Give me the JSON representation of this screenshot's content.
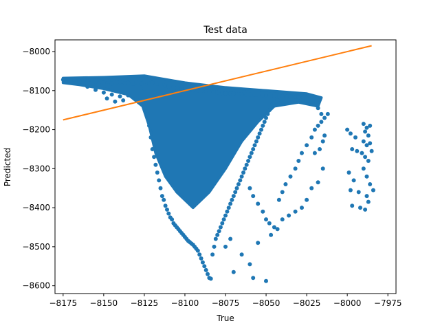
{
  "chart_data": {
    "type": "scatter",
    "title": "Test data",
    "xlabel": "True",
    "ylabel": "Predicted",
    "xlim": [
      -8180,
      -7970
    ],
    "ylim": [
      -8620,
      -7970
    ],
    "xticks": [
      -8175,
      -8150,
      -8125,
      -8100,
      -8075,
      -8050,
      -8025,
      -8000,
      -7975
    ],
    "yticks": [
      -8000,
      -8100,
      -8200,
      -8300,
      -8400,
      -8500,
      -8600
    ],
    "xtick_labels": [
      "−8175",
      "−8150",
      "−8125",
      "−8100",
      "−8075",
      "−8050",
      "−8025",
      "−8000",
      "−7975"
    ],
    "ytick_labels": [
      "−8000",
      "−8100",
      "−8200",
      "−8300",
      "−8400",
      "−8500",
      "−8600"
    ],
    "grid": false,
    "colors": {
      "scatter": "#1f77b4",
      "line": "#ff7f0e"
    },
    "series": [
      {
        "kind": "scatter",
        "points": [
          [
            -8175,
            -8072
          ],
          [
            -8172,
            -8070
          ],
          [
            -8170,
            -8075
          ],
          [
            -8168,
            -8072
          ],
          [
            -8165,
            -8075
          ],
          [
            -8162,
            -8073
          ],
          [
            -8160,
            -8076
          ],
          [
            -8157,
            -8074
          ],
          [
            -8155,
            -8078
          ],
          [
            -8152,
            -8076
          ],
          [
            -8150,
            -8080
          ],
          [
            -8147,
            -8077
          ],
          [
            -8145,
            -8082
          ],
          [
            -8142,
            -8079
          ],
          [
            -8140,
            -8078
          ],
          [
            -8137,
            -8081
          ],
          [
            -8135,
            -8080
          ],
          [
            -8132,
            -8083
          ],
          [
            -8130,
            -8079
          ],
          [
            -8127,
            -8082
          ],
          [
            -8125,
            -8078
          ],
          [
            -8122,
            -8081
          ],
          [
            -8120,
            -8080
          ],
          [
            -8117,
            -8083
          ],
          [
            -8115,
            -8085
          ],
          [
            -8112,
            -8087
          ],
          [
            -8110,
            -8090
          ],
          [
            -8107,
            -8091
          ],
          [
            -8105,
            -8093
          ],
          [
            -8102,
            -8095
          ],
          [
            -8100,
            -8096
          ],
          [
            -8097,
            -8098
          ],
          [
            -8095,
            -8099
          ],
          [
            -8092,
            -8100
          ],
          [
            -8090,
            -8101
          ],
          [
            -8087,
            -8102
          ],
          [
            -8085,
            -8103
          ],
          [
            -8082,
            -8104
          ],
          [
            -8080,
            -8105
          ],
          [
            -8077,
            -8106
          ],
          [
            -8075,
            -8107
          ],
          [
            -8072,
            -8108
          ],
          [
            -8070,
            -8108
          ],
          [
            -8067,
            -8109
          ],
          [
            -8065,
            -8109
          ],
          [
            -8062,
            -8110
          ],
          [
            -8060,
            -8110
          ],
          [
            -8057,
            -8111
          ],
          [
            -8055,
            -8111
          ],
          [
            -8052,
            -8112
          ],
          [
            -8050,
            -8112
          ],
          [
            -8047,
            -8113
          ],
          [
            -8045,
            -8113
          ],
          [
            -8042,
            -8114
          ],
          [
            -8040,
            -8114
          ],
          [
            -8037,
            -8115
          ],
          [
            -8035,
            -8115
          ],
          [
            -8032,
            -8116
          ],
          [
            -8030,
            -8117
          ],
          [
            -8027,
            -8118
          ],
          [
            -8025,
            -8120
          ],
          [
            -8022,
            -8128
          ],
          [
            -8020,
            -8136
          ],
          [
            -8018,
            -8145
          ],
          [
            -8016,
            -8160
          ],
          [
            -8160,
            -8090
          ],
          [
            -8155,
            -8098
          ],
          [
            -8150,
            -8105
          ],
          [
            -8145,
            -8110
          ],
          [
            -8140,
            -8115
          ],
          [
            -8135,
            -8112
          ],
          [
            -8130,
            -8120
          ],
          [
            -8148,
            -8120
          ],
          [
            -8143,
            -8128
          ],
          [
            -8138,
            -8125
          ],
          [
            -8125,
            -8095
          ],
          [
            -8124,
            -8130
          ],
          [
            -8123,
            -8160
          ],
          [
            -8122,
            -8190
          ],
          [
            -8121,
            -8220
          ],
          [
            -8120,
            -8250
          ],
          [
            -8119,
            -8270
          ],
          [
            -8118,
            -8290
          ],
          [
            -8117,
            -8310
          ],
          [
            -8116,
            -8330
          ],
          [
            -8115,
            -8350
          ],
          [
            -8114,
            -8370
          ],
          [
            -8113,
            -8380
          ],
          [
            -8112,
            -8395
          ],
          [
            -8111,
            -8405
          ],
          [
            -8110,
            -8415
          ],
          [
            -8109,
            -8425
          ],
          [
            -8108,
            -8430
          ],
          [
            -8107,
            -8440
          ],
          [
            -8106,
            -8445
          ],
          [
            -8105,
            -8450
          ],
          [
            -8104,
            -8455
          ],
          [
            -8103,
            -8460
          ],
          [
            -8102,
            -8465
          ],
          [
            -8101,
            -8470
          ],
          [
            -8100,
            -8475
          ],
          [
            -8099,
            -8480
          ],
          [
            -8098,
            -8485
          ],
          [
            -8097,
            -8488
          ],
          [
            -8096,
            -8492
          ],
          [
            -8095,
            -8495
          ],
          [
            -8094,
            -8500
          ],
          [
            -8093,
            -8505
          ],
          [
            -8092,
            -8510
          ],
          [
            -8091,
            -8520
          ],
          [
            -8090,
            -8530
          ],
          [
            -8089,
            -8540
          ],
          [
            -8088,
            -8550
          ],
          [
            -8087,
            -8560
          ],
          [
            -8086,
            -8570
          ],
          [
            -8085,
            -8580
          ],
          [
            -8084,
            -8582
          ],
          [
            -8083,
            -8520
          ],
          [
            -8082,
            -8500
          ],
          [
            -8081,
            -8480
          ],
          [
            -8080,
            -8470
          ],
          [
            -8079,
            -8460
          ],
          [
            -8078,
            -8450
          ],
          [
            -8077,
            -8440
          ],
          [
            -8076,
            -8430
          ],
          [
            -8075,
            -8420
          ],
          [
            -8074,
            -8410
          ],
          [
            -8073,
            -8400
          ],
          [
            -8072,
            -8390
          ],
          [
            -8071,
            -8380
          ],
          [
            -8070,
            -8370
          ],
          [
            -8069,
            -8360
          ],
          [
            -8068,
            -8350
          ],
          [
            -8067,
            -8340
          ],
          [
            -8066,
            -8330
          ],
          [
            -8065,
            -8320
          ],
          [
            -8064,
            -8310
          ],
          [
            -8063,
            -8300
          ],
          [
            -8062,
            -8290
          ],
          [
            -8061,
            -8280
          ],
          [
            -8060,
            -8270
          ],
          [
            -8059,
            -8260
          ],
          [
            -8058,
            -8250
          ],
          [
            -8057,
            -8240
          ],
          [
            -8056,
            -8230
          ],
          [
            -8055,
            -8220
          ],
          [
            -8054,
            -8210
          ],
          [
            -8053,
            -8200
          ],
          [
            -8052,
            -8190
          ],
          [
            -8051,
            -8180
          ],
          [
            -8050,
            -8170
          ],
          [
            -8049,
            -8160
          ],
          [
            -8048,
            -8150
          ],
          [
            -8047,
            -8140
          ],
          [
            -8046,
            -8135
          ],
          [
            -8045,
            -8130
          ],
          [
            -8044,
            -8128
          ],
          [
            -8043,
            -8125
          ],
          [
            -8060,
            -8350
          ],
          [
            -8058,
            -8370
          ],
          [
            -8055,
            -8390
          ],
          [
            -8052,
            -8410
          ],
          [
            -8050,
            -8430
          ],
          [
            -8048,
            -8440
          ],
          [
            -8045,
            -8450
          ],
          [
            -8042,
            -8380
          ],
          [
            -8040,
            -8360
          ],
          [
            -8038,
            -8340
          ],
          [
            -8035,
            -8320
          ],
          [
            -8032,
            -8300
          ],
          [
            -8030,
            -8280
          ],
          [
            -8028,
            -8260
          ],
          [
            -8025,
            -8240
          ],
          [
            -8022,
            -8220
          ],
          [
            -8020,
            -8200
          ],
          [
            -8018,
            -8190
          ],
          [
            -8016,
            -8180
          ],
          [
            -8014,
            -8170
          ],
          [
            -8012,
            -8160
          ],
          [
            -8075,
            -8500
          ],
          [
            -8072,
            -8480
          ],
          [
            -8070,
            -8565
          ],
          [
            -8065,
            -8520
          ],
          [
            -8060,
            -8545
          ],
          [
            -8058,
            -8580
          ],
          [
            -8055,
            -8490
          ],
          [
            -8050,
            -8588
          ],
          [
            -8047,
            -8470
          ],
          [
            -8043,
            -8455
          ],
          [
            -8040,
            -8430
          ],
          [
            -8036,
            -8420
          ],
          [
            -8032,
            -8410
          ],
          [
            -8028,
            -8400
          ],
          [
            -8025,
            -8380
          ],
          [
            -8022,
            -8350
          ],
          [
            -8018,
            -8335
          ],
          [
            -8015,
            -8300
          ],
          [
            -8020,
            -8260
          ],
          [
            -8017,
            -8250
          ],
          [
            -8015,
            -8230
          ],
          [
            -8014,
            -8215
          ],
          [
            -8000,
            -8200
          ],
          [
            -7998,
            -8210
          ],
          [
            -7995,
            -8220
          ],
          [
            -7997,
            -8250
          ],
          [
            -7994,
            -8255
          ],
          [
            -7999,
            -8310
          ],
          [
            -7996,
            -8330
          ],
          [
            -7998,
            -8355
          ],
          [
            -7993,
            -8360
          ],
          [
            -7992,
            -8400
          ],
          [
            -7997,
            -8395
          ],
          [
            -7990,
            -8185
          ],
          [
            -7988,
            -8195
          ],
          [
            -7986,
            -8190
          ],
          [
            -7989,
            -8205
          ],
          [
            -7987,
            -8215
          ],
          [
            -7990,
            -8230
          ],
          [
            -7988,
            -8240
          ],
          [
            -7986,
            -8235
          ],
          [
            -7991,
            -8260
          ],
          [
            -7989,
            -8270
          ],
          [
            -7987,
            -8280
          ],
          [
            -7990,
            -8300
          ],
          [
            -7988,
            -8320
          ],
          [
            -7985,
            -8255
          ],
          [
            -7984,
            -8355
          ],
          [
            -7986,
            -8340
          ],
          [
            -7988,
            -8370
          ],
          [
            -7987,
            -8385
          ],
          [
            -7989,
            -8405
          ]
        ]
      },
      {
        "kind": "line",
        "points": [
          [
            -8175,
            -8175
          ],
          [
            -7985,
            -7985
          ]
        ]
      }
    ]
  }
}
